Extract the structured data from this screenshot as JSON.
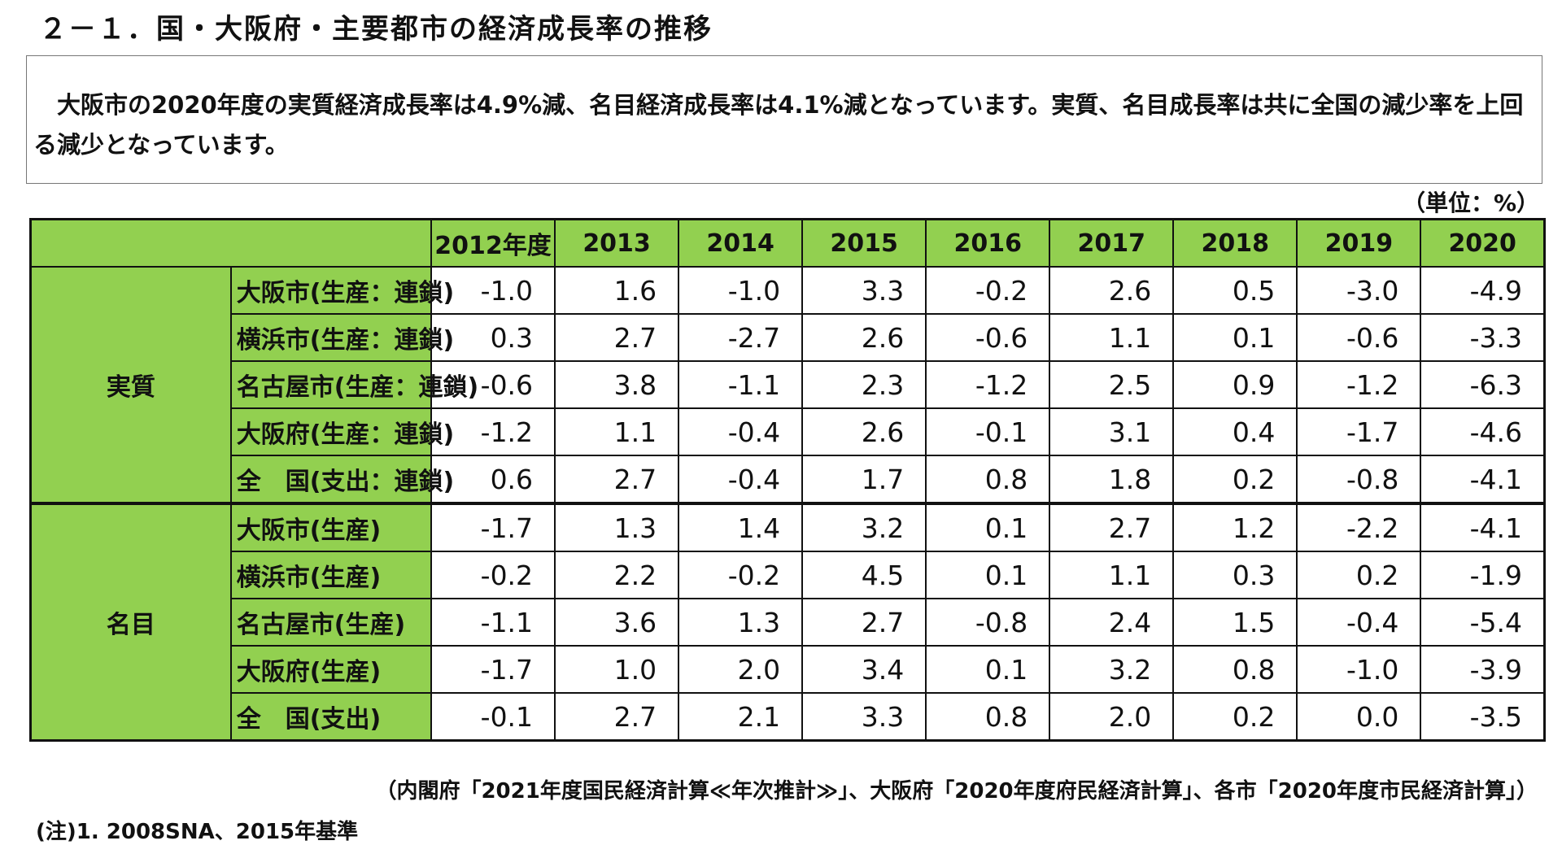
{
  "title": "２－１．国・大阪府・主要都市の経済成長率の推移",
  "summary": [
    "大阪市の2020年度の実質経済成長率は4.9%減、名目経済成長率は4.1%減となっています。実質、名目成長率は共に全国の減少率を上回る減少となっています。"
  ],
  "unit": "（単位：%）",
  "table": {
    "years": [
      "2012年度",
      "2013",
      "2014",
      "2015",
      "2016",
      "2017",
      "2018",
      "2019",
      "2020"
    ],
    "groups": [
      {
        "name": "実質",
        "rows": [
          {
            "label": "大阪市(生産：連鎖)",
            "values": [
              "-1.0",
              "1.6",
              "-1.0",
              "3.3",
              "-0.2",
              "2.6",
              "0.5",
              "-3.0",
              "-4.9"
            ]
          },
          {
            "label": "横浜市(生産：連鎖)",
            "values": [
              "0.3",
              "2.7",
              "-2.7",
              "2.6",
              "-0.6",
              "1.1",
              "0.1",
              "-0.6",
              "-3.3"
            ]
          },
          {
            "label": "名古屋市(生産：連鎖)",
            "values": [
              "-0.6",
              "3.8",
              "-1.1",
              "2.3",
              "-1.2",
              "2.5",
              "0.9",
              "-1.2",
              "-6.3"
            ]
          },
          {
            "label": "大阪府(生産：連鎖)",
            "values": [
              "-1.2",
              "1.1",
              "-0.4",
              "2.6",
              "-0.1",
              "3.1",
              "0.4",
              "-1.7",
              "-4.6"
            ]
          },
          {
            "label": "全　国(支出：連鎖)",
            "values": [
              "0.6",
              "2.7",
              "-0.4",
              "1.7",
              "0.8",
              "1.8",
              "0.2",
              "-0.8",
              "-4.1"
            ]
          }
        ]
      },
      {
        "name": "名目",
        "rows": [
          {
            "label": "大阪市(生産)",
            "values": [
              "-1.7",
              "1.3",
              "1.4",
              "3.2",
              "0.1",
              "2.7",
              "1.2",
              "-2.2",
              "-4.1"
            ]
          },
          {
            "label": "横浜市(生産)",
            "values": [
              "-0.2",
              "2.2",
              "-0.2",
              "4.5",
              "0.1",
              "1.1",
              "0.3",
              "0.2",
              "-1.9"
            ]
          },
          {
            "label": "名古屋市(生産)",
            "values": [
              "-1.1",
              "3.6",
              "1.3",
              "2.7",
              "-0.8",
              "2.4",
              "1.5",
              "-0.4",
              "-5.4"
            ]
          },
          {
            "label": "大阪府(生産)",
            "values": [
              "-1.7",
              "1.0",
              "2.0",
              "3.4",
              "0.1",
              "3.2",
              "0.8",
              "-1.0",
              "-3.9"
            ]
          },
          {
            "label": "全　国(支出)",
            "values": [
              "-0.1",
              "2.7",
              "2.1",
              "3.3",
              "0.8",
              "2.0",
              "0.2",
              "0.0",
              "-3.5"
            ]
          }
        ]
      }
    ]
  },
  "source": "（内閣府「2021年度国民経済計算≪年次推計≫」、大阪府「2020年度府民経済計算」、各市「2020年度市民経済計算」）",
  "note": "(注)1. 2008SNA、2015年基準"
}
